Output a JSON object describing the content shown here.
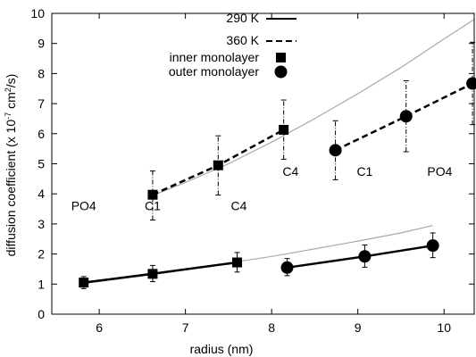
{
  "chart_data": {
    "type": "line",
    "title": "",
    "xlabel": "radius (nm)",
    "ylabel_main": "diffusion coefficient (x 10",
    "ylabel_sup1": "-7",
    "ylabel_mid": " cm",
    "ylabel_sup2": "2",
    "ylabel_end": "/s)",
    "xlim": [
      5.45,
      10.35
    ],
    "ylim": [
      0,
      10
    ],
    "xticks": [
      6,
      7,
      8,
      9,
      10
    ],
    "yticks": [
      0,
      1,
      2,
      3,
      4,
      5,
      6,
      7,
      8,
      9,
      10
    ],
    "grid": false,
    "legend": {
      "position": "top-right",
      "entries": [
        {
          "label": "290 K",
          "style": "solid-line"
        },
        {
          "label": "360 K",
          "style": "dashed-line"
        },
        {
          "label": "inner monolayer",
          "style": "square-marker"
        },
        {
          "label": "outer monolayer",
          "style": "circle-marker"
        }
      ]
    },
    "annotations": [
      {
        "text": "PO4",
        "x": 5.82,
        "y": 3.6
      },
      {
        "text": "C1",
        "x": 6.62,
        "y": 3.6
      },
      {
        "text": "C4",
        "x": 7.62,
        "y": 3.6
      },
      {
        "text": "C4",
        "x": 8.22,
        "y": 4.75
      },
      {
        "text": "C1",
        "x": 9.08,
        "y": 4.75
      },
      {
        "text": "PO4",
        "x": 9.95,
        "y": 4.75
      }
    ],
    "series": [
      {
        "temperature": "360 K",
        "monolayer": "inner",
        "line": "dashed",
        "marker": "square",
        "x": [
          6.62,
          7.38,
          8.14
        ],
        "y": [
          3.97,
          4.95,
          6.13
        ],
        "err_low": [
          3.13,
          3.96,
          5.15
        ],
        "err_high": [
          4.76,
          5.93,
          7.12
        ]
      },
      {
        "temperature": "360 K",
        "monolayer": "outer",
        "line": "dashed",
        "marker": "circle",
        "x": [
          8.74,
          9.56,
          10.33
        ],
        "y": [
          5.45,
          6.58,
          7.67
        ],
        "err_low": [
          4.47,
          5.4,
          6.3
        ],
        "err_high": [
          6.43,
          7.76,
          9.04
        ]
      },
      {
        "temperature": "290 K",
        "monolayer": "inner",
        "line": "solid",
        "marker": "square",
        "x": [
          5.82,
          6.62,
          7.6
        ],
        "y": [
          1.05,
          1.34,
          1.72
        ],
        "err_low": [
          0.85,
          1.08,
          1.4
        ],
        "err_high": [
          1.25,
          1.62,
          2.05
        ]
      },
      {
        "temperature": "290 K",
        "monolayer": "outer",
        "line": "solid",
        "marker": "circle",
        "x": [
          8.18,
          9.08,
          9.87
        ],
        "y": [
          1.55,
          1.92,
          2.28
        ],
        "err_low": [
          1.28,
          1.56,
          1.88
        ],
        "err_high": [
          1.85,
          2.3,
          2.7
        ]
      }
    ],
    "fit_curves": [
      {
        "color": "#aaaaaa",
        "x": [
          6.62,
          7.0,
          7.5,
          8.0,
          8.5,
          9.0,
          9.5,
          10.0,
          10.35
        ],
        "y": [
          3.95,
          4.38,
          5.0,
          5.72,
          6.5,
          7.33,
          8.2,
          9.15,
          9.8
        ]
      },
      {
        "color": "#aaaaaa",
        "x": [
          5.82,
          6.5,
          7.0,
          7.5,
          8.0,
          8.5,
          9.0,
          9.5,
          9.87
        ],
        "y": [
          1.02,
          1.27,
          1.48,
          1.7,
          1.92,
          2.17,
          2.43,
          2.7,
          2.95
        ]
      }
    ]
  }
}
